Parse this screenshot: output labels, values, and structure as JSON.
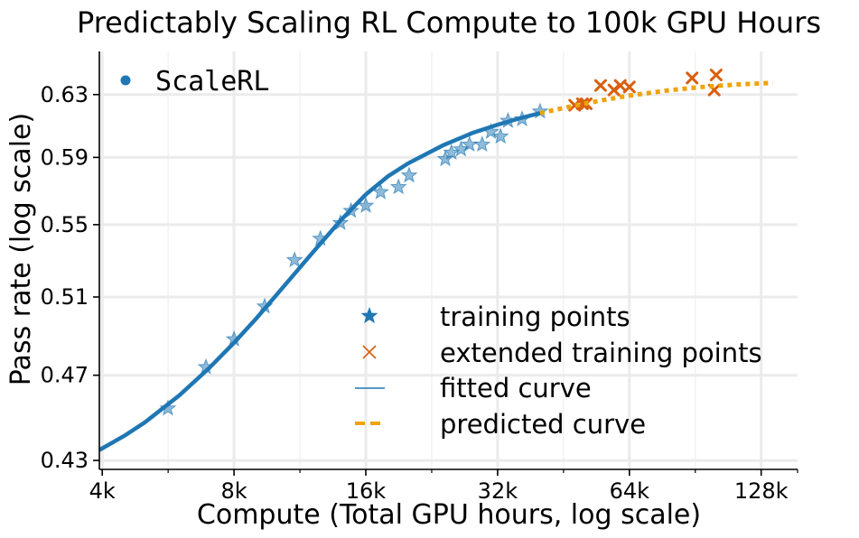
{
  "chart_data": {
    "type": "line",
    "title": "Predictably Scaling RL Compute to 100k GPU Hours",
    "xlabel": "Compute (Total GPU hours, log scale)",
    "ylabel": "Pass rate (log scale)",
    "x_scale": "log2",
    "y_scale": "log",
    "xlim": [
      3940,
      155000
    ],
    "ylim": [
      0.426,
      0.659
    ],
    "x_ticks": [
      {
        "value": 4000,
        "label": "4k"
      },
      {
        "value": 8000,
        "label": "8k"
      },
      {
        "value": 16000,
        "label": "16k"
      },
      {
        "value": 32000,
        "label": "32k"
      },
      {
        "value": 64000,
        "label": "64k"
      },
      {
        "value": 128000,
        "label": "128k"
      }
    ],
    "y_ticks": [
      {
        "value": 0.43,
        "label": "0.43"
      },
      {
        "value": 0.47,
        "label": "0.47"
      },
      {
        "value": 0.51,
        "label": "0.51"
      },
      {
        "value": 0.55,
        "label": "0.55"
      },
      {
        "value": 0.59,
        "label": "0.59"
      },
      {
        "value": 0.63,
        "label": "0.63"
      }
    ],
    "grid": true,
    "method_label": "ScaleRL",
    "method_color": "#1f77b4",
    "legend": {
      "position": "lower-right",
      "entries": [
        {
          "label": "training points",
          "marker": "star",
          "color": "#1f77b4"
        },
        {
          "label": "extended training points",
          "marker": "x",
          "color": "#d95f0e"
        },
        {
          "label": "fitted curve",
          "marker": "line",
          "color": "#1f77b4"
        },
        {
          "label": "predicted curve",
          "marker": "dashed",
          "color": "#f0a30a"
        }
      ]
    },
    "series": [
      {
        "name": "training points",
        "marker": "star",
        "color": "#1f77b4",
        "points": [
          [
            5650,
            0.454
          ],
          [
            6900,
            0.474
          ],
          [
            8000,
            0.488
          ],
          [
            9400,
            0.505
          ],
          [
            11000,
            0.53
          ],
          [
            12600,
            0.542
          ],
          [
            14000,
            0.551
          ],
          [
            14800,
            0.558
          ],
          [
            16000,
            0.561
          ],
          [
            17300,
            0.569
          ],
          [
            19000,
            0.572
          ],
          [
            20100,
            0.579
          ],
          [
            24300,
            0.589
          ],
          [
            25100,
            0.593
          ],
          [
            26400,
            0.595
          ],
          [
            27600,
            0.598
          ],
          [
            29500,
            0.598
          ],
          [
            30900,
            0.606
          ],
          [
            32500,
            0.603
          ],
          [
            33800,
            0.613
          ],
          [
            36400,
            0.614
          ],
          [
            40000,
            0.619
          ]
        ]
      },
      {
        "name": "extended training points",
        "marker": "x",
        "color": "#d95f0e",
        "points": [
          [
            48000,
            0.623
          ],
          [
            50000,
            0.624
          ],
          [
            51000,
            0.624
          ],
          [
            55000,
            0.636
          ],
          [
            59000,
            0.633
          ],
          [
            61000,
            0.636
          ],
          [
            64000,
            0.635
          ],
          [
            89000,
            0.641
          ],
          [
            100000,
            0.633
          ],
          [
            101000,
            0.643
          ]
        ]
      },
      {
        "name": "fitted curve",
        "style": "solid",
        "color": "#1f77b4",
        "points": [
          [
            3940,
            0.4347
          ],
          [
            4500,
            0.4413
          ],
          [
            5000,
            0.4474
          ],
          [
            6000,
            0.4602
          ],
          [
            7000,
            0.4733
          ],
          [
            8000,
            0.4862
          ],
          [
            9000,
            0.4988
          ],
          [
            10000,
            0.5111
          ],
          [
            11000,
            0.5225
          ],
          [
            12000,
            0.5332
          ],
          [
            14000,
            0.5523
          ],
          [
            16000,
            0.5676
          ],
          [
            18000,
            0.5786
          ],
          [
            20000,
            0.5864
          ],
          [
            24000,
            0.5974
          ],
          [
            28000,
            0.6052
          ],
          [
            32000,
            0.6105
          ],
          [
            36000,
            0.6146
          ],
          [
            40000,
            0.6179
          ]
        ]
      },
      {
        "name": "predicted curve",
        "style": "dotted",
        "color": "#f0a30a",
        "points": [
          [
            40000,
            0.6179
          ],
          [
            48000,
            0.6228
          ],
          [
            56000,
            0.6265
          ],
          [
            64000,
            0.6293
          ],
          [
            80000,
            0.6331
          ],
          [
            96000,
            0.6353
          ],
          [
            112000,
            0.6366
          ],
          [
            136000,
            0.6378
          ]
        ]
      }
    ]
  }
}
